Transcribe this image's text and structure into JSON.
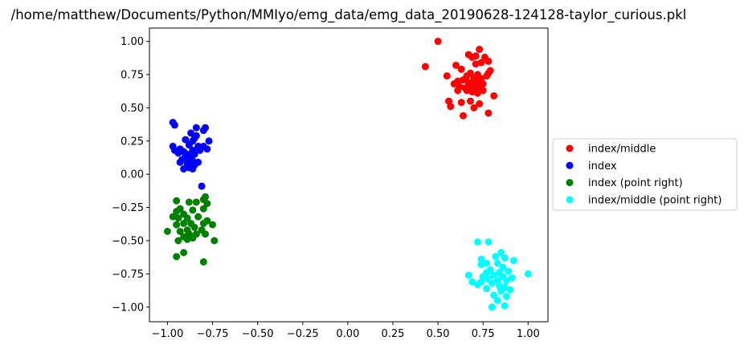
{
  "chart_data": {
    "type": "scatter",
    "title": "/home/matthew/Documents/Python/MMIyo/emg_data/emg_data_20190628-124128-taylor_curious.pkl",
    "xlabel": "",
    "ylabel": "",
    "xlim": [
      -1.1,
      1.11
    ],
    "ylim": [
      -1.11,
      1.1
    ],
    "xticks": [
      -1.0,
      -0.75,
      -0.5,
      -0.25,
      0.0,
      0.25,
      0.5,
      0.75,
      1.0
    ],
    "xtick_labels": [
      "−1.00",
      "−0.75",
      "−0.50",
      "−0.25",
      "0.00",
      "0.25",
      "0.50",
      "0.75",
      "1.00"
    ],
    "yticks": [
      -1.0,
      -0.75,
      -0.5,
      -0.25,
      0.0,
      0.25,
      0.5,
      0.75,
      1.0
    ],
    "ytick_labels": [
      "−1.00",
      "−0.75",
      "−0.50",
      "−0.25",
      "0.00",
      "0.25",
      "0.50",
      "0.75",
      "1.00"
    ],
    "grid": false,
    "legend_position": "outside-right",
    "series": [
      {
        "name": "index/middle",
        "color": "#ff0000",
        "points": [
          [
            0.5,
            1.0
          ],
          [
            0.43,
            0.81
          ],
          [
            0.73,
            0.94
          ],
          [
            0.71,
            0.89
          ],
          [
            0.67,
            0.9
          ],
          [
            0.69,
            0.88
          ],
          [
            0.76,
            0.88
          ],
          [
            0.78,
            0.85
          ],
          [
            0.74,
            0.84
          ],
          [
            0.71,
            0.83
          ],
          [
            0.6,
            0.82
          ],
          [
            0.63,
            0.79
          ],
          [
            0.79,
            0.78
          ],
          [
            0.78,
            0.76
          ],
          [
            0.55,
            0.74
          ],
          [
            0.68,
            0.76
          ],
          [
            0.72,
            0.75
          ],
          [
            0.77,
            0.74
          ],
          [
            0.66,
            0.74
          ],
          [
            0.74,
            0.72
          ],
          [
            0.7,
            0.72
          ],
          [
            0.64,
            0.71
          ],
          [
            0.61,
            0.7
          ],
          [
            0.72,
            0.7
          ],
          [
            0.59,
            0.68
          ],
          [
            0.67,
            0.69
          ],
          [
            0.7,
            0.68
          ],
          [
            0.75,
            0.68
          ],
          [
            0.62,
            0.66
          ],
          [
            0.68,
            0.67
          ],
          [
            0.73,
            0.66
          ],
          [
            0.65,
            0.65
          ],
          [
            0.7,
            0.65
          ],
          [
            0.61,
            0.63
          ],
          [
            0.66,
            0.63
          ],
          [
            0.75,
            0.63
          ],
          [
            0.69,
            0.62
          ],
          [
            0.72,
            0.61
          ],
          [
            0.81,
            0.59
          ],
          [
            0.56,
            0.55
          ],
          [
            0.68,
            0.55
          ],
          [
            0.63,
            0.54
          ],
          [
            0.73,
            0.53
          ],
          [
            0.57,
            0.51
          ],
          [
            0.7,
            0.5
          ],
          [
            0.78,
            0.46
          ],
          [
            0.64,
            0.44
          ]
        ]
      },
      {
        "name": "index",
        "color": "#0000ff",
        "points": [
          [
            -0.97,
            0.39
          ],
          [
            -0.96,
            0.37
          ],
          [
            -0.84,
            0.35
          ],
          [
            -0.79,
            0.35
          ],
          [
            -0.8,
            0.33
          ],
          [
            -0.87,
            0.31
          ],
          [
            -0.84,
            0.29
          ],
          [
            -0.85,
            0.27
          ],
          [
            -0.9,
            0.26
          ],
          [
            -0.86,
            0.25
          ],
          [
            -0.77,
            0.25
          ],
          [
            -0.88,
            0.22
          ],
          [
            -0.83,
            0.21
          ],
          [
            -0.97,
            0.21
          ],
          [
            -0.8,
            0.21
          ],
          [
            -0.93,
            0.19
          ],
          [
            -0.91,
            0.17
          ],
          [
            -0.86,
            0.18
          ],
          [
            -0.82,
            0.18
          ],
          [
            -0.78,
            0.19
          ],
          [
            -0.96,
            0.18
          ],
          [
            -0.94,
            0.16
          ],
          [
            -0.89,
            0.15
          ],
          [
            -0.85,
            0.15
          ],
          [
            -0.9,
            0.13
          ],
          [
            -0.87,
            0.12
          ],
          [
            -0.92,
            0.11
          ],
          [
            -0.86,
            0.1
          ],
          [
            -0.83,
            0.09
          ],
          [
            -0.93,
            0.09
          ],
          [
            -0.89,
            0.08
          ],
          [
            -0.85,
            0.07
          ],
          [
            -0.88,
            0.05
          ],
          [
            -0.91,
            0.04
          ],
          [
            -0.86,
            0.04
          ],
          [
            -0.81,
            -0.09
          ]
        ]
      },
      {
        "name": "index (point right)",
        "color": "#008000",
        "points": [
          [
            -0.95,
            -0.2
          ],
          [
            -0.79,
            -0.17
          ],
          [
            -0.8,
            -0.19
          ],
          [
            -0.84,
            -0.21
          ],
          [
            -0.88,
            -0.21
          ],
          [
            -0.78,
            -0.22
          ],
          [
            -0.93,
            -0.26
          ],
          [
            -0.8,
            -0.26
          ],
          [
            -0.86,
            -0.27
          ],
          [
            -0.95,
            -0.28
          ],
          [
            -0.91,
            -0.3
          ],
          [
            -0.97,
            -0.32
          ],
          [
            -0.94,
            -0.33
          ],
          [
            -0.89,
            -0.33
          ],
          [
            -0.83,
            -0.32
          ],
          [
            -0.78,
            -0.35
          ],
          [
            -0.8,
            -0.37
          ],
          [
            -0.91,
            -0.37
          ],
          [
            -0.87,
            -0.37
          ],
          [
            -0.95,
            -0.38
          ],
          [
            -0.75,
            -0.38
          ],
          [
            -0.85,
            -0.4
          ],
          [
            -0.89,
            -0.42
          ],
          [
            -0.81,
            -0.42
          ],
          [
            -1.0,
            -0.43
          ],
          [
            -0.93,
            -0.43
          ],
          [
            -0.88,
            -0.45
          ],
          [
            -0.84,
            -0.45
          ],
          [
            -0.79,
            -0.45
          ],
          [
            -0.91,
            -0.47
          ],
          [
            -0.86,
            -0.48
          ],
          [
            -0.94,
            -0.5
          ],
          [
            -0.89,
            -0.49
          ],
          [
            -0.74,
            -0.5
          ],
          [
            -0.91,
            -0.59
          ],
          [
            -0.95,
            -0.62
          ],
          [
            -0.8,
            -0.66
          ]
        ]
      },
      {
        "name": "index/middle (point right)",
        "color": "#00ffff",
        "points": [
          [
            0.72,
            -0.51
          ],
          [
            0.78,
            -0.51
          ],
          [
            0.85,
            -0.59
          ],
          [
            0.82,
            -0.62
          ],
          [
            0.74,
            -0.64
          ],
          [
            0.87,
            -0.63
          ],
          [
            0.92,
            -0.65
          ],
          [
            0.77,
            -0.67
          ],
          [
            0.83,
            -0.67
          ],
          [
            0.74,
            -0.68
          ],
          [
            0.86,
            -0.7
          ],
          [
            0.79,
            -0.72
          ],
          [
            0.84,
            -0.74
          ],
          [
            0.89,
            -0.73
          ],
          [
            0.77,
            -0.74
          ],
          [
            1.0,
            -0.75
          ],
          [
            0.67,
            -0.76
          ],
          [
            0.81,
            -0.76
          ],
          [
            0.75,
            -0.77
          ],
          [
            0.86,
            -0.77
          ],
          [
            0.91,
            -0.78
          ],
          [
            0.78,
            -0.79
          ],
          [
            0.83,
            -0.8
          ],
          [
            0.88,
            -0.8
          ],
          [
            0.69,
            -0.81
          ],
          [
            0.74,
            -0.81
          ],
          [
            0.72,
            -0.83
          ],
          [
            0.8,
            -0.82
          ],
          [
            0.84,
            -0.84
          ],
          [
            0.87,
            -0.85
          ],
          [
            0.77,
            -0.86
          ],
          [
            0.9,
            -0.87
          ],
          [
            0.85,
            -0.88
          ],
          [
            0.81,
            -0.91
          ],
          [
            0.88,
            -0.92
          ],
          [
            0.83,
            -0.95
          ],
          [
            0.87,
            -0.99
          ],
          [
            0.8,
            -1.0
          ]
        ]
      }
    ]
  }
}
